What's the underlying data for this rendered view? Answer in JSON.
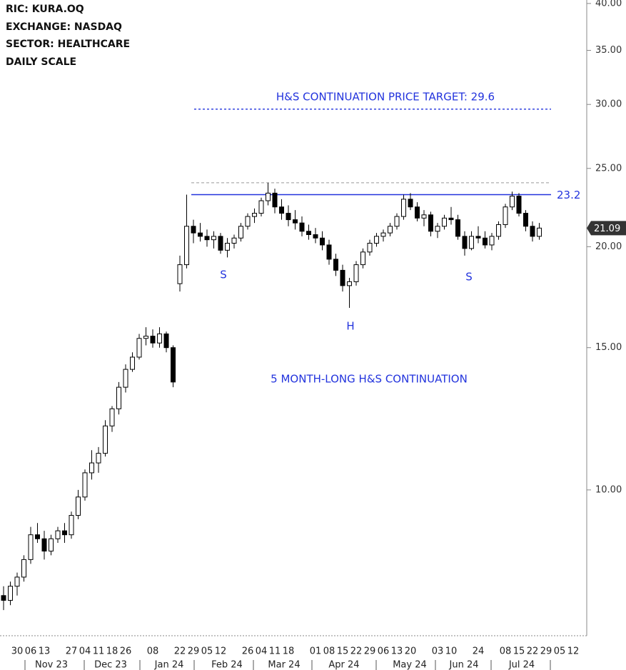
{
  "chart_data": {
    "type": "candlestick",
    "header": [
      "RIC:  KURA.OQ",
      "EXCHANGE: NASDAQ",
      "SECTOR:  HEALTHCARE",
      "DAILY SCALE"
    ],
    "log_scale": true,
    "ylim": [
      6.6,
      40.4
    ],
    "yticks": [
      {
        "value": 10,
        "label": "10.00"
      },
      {
        "value": 15,
        "label": "15.00"
      },
      {
        "value": 20,
        "label": "20.00"
      },
      {
        "value": 25,
        "label": "25.00"
      },
      {
        "value": 30,
        "label": "30.00"
      },
      {
        "value": 35,
        "label": "35.00"
      },
      {
        "value": 40,
        "label": "40.00"
      }
    ],
    "categories": [
      null,
      null,
      "30",
      null,
      "06",
      null,
      "13",
      null,
      null,
      null,
      "27",
      null,
      "04",
      null,
      "11",
      null,
      "18",
      null,
      "26",
      null,
      null,
      null,
      "08",
      null,
      null,
      null,
      "22",
      null,
      "29",
      null,
      "05",
      null,
      "12",
      null,
      null,
      null,
      "26",
      null,
      "04",
      null,
      "11",
      null,
      "18",
      null,
      null,
      null,
      "01",
      null,
      "08",
      null,
      "15",
      null,
      "22",
      null,
      "29",
      null,
      "06",
      null,
      "13",
      null,
      "20",
      null,
      null,
      null,
      "03",
      null,
      "10",
      null,
      null,
      null,
      "24",
      null,
      null,
      null,
      "08",
      null,
      "15",
      null,
      "22",
      null,
      "29",
      null,
      "05",
      null,
      "12",
      null
    ],
    "month_labels": [
      "Nov 23",
      "Dec 23",
      "Jan 24",
      "Feb 24",
      "Mar 24",
      "Apr 24",
      "May 24",
      "Jun 24",
      "Jul 24"
    ],
    "open": [
      7.4,
      7.3,
      7.6,
      7.8,
      8.2,
      8.8,
      8.7,
      8.4,
      8.7,
      8.9,
      8.8,
      9.3,
      9.8,
      10.5,
      10.8,
      11.1,
      12.0,
      12.6,
      13.4,
      14.1,
      14.6,
      15.4,
      15.5,
      15.2,
      15.6,
      15.0,
      18.0,
      19.0,
      21.2,
      20.8,
      20.6,
      20.4,
      20.6,
      19.8,
      20.2,
      20.5,
      21.2,
      21.8,
      22.0,
      22.8,
      23.3,
      22.4,
      22.0,
      21.6,
      21.4,
      20.9,
      20.7,
      20.5,
      20.1,
      19.3,
      18.7,
      17.9,
      18.1,
      19.0,
      19.7,
      20.2,
      20.6,
      20.8,
      21.2,
      21.8,
      22.9,
      22.4,
      21.7,
      21.9,
      20.9,
      21.2,
      21.7,
      21.6,
      20.6,
      19.9,
      20.6,
      20.5,
      20.1,
      20.6,
      21.3,
      22.4,
      23.1,
      22.0,
      21.2,
      20.6,
      null,
      null,
      null,
      null,
      null,
      null
    ],
    "high": [
      7.6,
      7.7,
      7.9,
      8.3,
      9.0,
      9.1,
      8.9,
      8.8,
      9.0,
      9.1,
      9.4,
      10.0,
      10.6,
      11.2,
      11.3,
      12.2,
      12.7,
      13.6,
      14.3,
      14.8,
      15.6,
      15.9,
      15.8,
      15.9,
      15.7,
      15.1,
      19.5,
      23.2,
      21.6,
      21.4,
      21.0,
      20.9,
      20.8,
      20.5,
      20.7,
      21.4,
      22.0,
      22.3,
      23.0,
      24.0,
      23.6,
      22.9,
      22.5,
      22.2,
      21.8,
      21.3,
      21.1,
      20.9,
      20.4,
      19.6,
      19.0,
      18.3,
      19.2,
      19.9,
      20.4,
      20.8,
      21.0,
      21.4,
      22.0,
      23.2,
      23.3,
      22.7,
      22.2,
      22.1,
      21.4,
      21.9,
      22.4,
      21.9,
      20.9,
      20.9,
      21.2,
      20.9,
      20.8,
      21.5,
      22.6,
      23.4,
      23.3,
      22.2,
      21.5,
      21.4,
      null,
      null,
      null,
      null,
      null,
      null
    ],
    "low": [
      7.1,
      7.2,
      7.4,
      7.7,
      8.1,
      8.6,
      8.2,
      8.3,
      8.6,
      8.6,
      8.7,
      9.2,
      9.7,
      10.3,
      10.5,
      11.0,
      11.8,
      12.4,
      13.2,
      14.0,
      14.5,
      15.1,
      15.0,
      15.0,
      14.8,
      13.4,
      17.6,
      18.8,
      20.2,
      20.3,
      20.0,
      19.9,
      19.6,
      19.4,
      19.9,
      20.3,
      21.0,
      21.4,
      21.8,
      22.5,
      22.0,
      21.6,
      21.2,
      21.0,
      20.6,
      20.4,
      20.2,
      19.8,
      19.0,
      18.4,
      17.6,
      16.8,
      17.9,
      18.8,
      19.5,
      20.0,
      20.3,
      20.6,
      21.0,
      21.6,
      22.2,
      21.5,
      21.2,
      20.6,
      20.5,
      21.0,
      21.3,
      20.4,
      19.5,
      19.8,
      20.2,
      19.9,
      19.8,
      20.4,
      21.1,
      22.2,
      21.8,
      20.9,
      20.3,
      20.4,
      null,
      null,
      null,
      null,
      null,
      null
    ],
    "close": [
      7.3,
      7.6,
      7.8,
      8.2,
      8.8,
      8.7,
      8.4,
      8.7,
      8.9,
      8.8,
      9.3,
      9.8,
      10.5,
      10.8,
      11.1,
      12.0,
      12.6,
      13.4,
      14.1,
      14.6,
      15.4,
      15.5,
      15.2,
      15.6,
      15.0,
      13.6,
      19.0,
      21.2,
      20.8,
      20.6,
      20.4,
      20.6,
      19.8,
      20.2,
      20.5,
      21.2,
      21.8,
      22.0,
      22.8,
      23.3,
      22.4,
      22.0,
      21.6,
      21.4,
      20.9,
      20.7,
      20.5,
      20.1,
      19.3,
      18.7,
      17.9,
      18.1,
      19.0,
      19.7,
      20.2,
      20.6,
      20.8,
      21.2,
      21.8,
      22.9,
      22.4,
      21.7,
      21.9,
      20.9,
      21.2,
      21.7,
      21.6,
      20.6,
      19.9,
      20.6,
      20.5,
      20.1,
      20.6,
      21.3,
      22.4,
      23.1,
      22.0,
      21.2,
      20.6,
      21.09,
      null,
      null,
      null,
      null,
      null,
      null
    ],
    "last_price": 21.09,
    "target": {
      "value": 29.6,
      "label": "H&S CONTINUATION PRICE TARGET: 29.6",
      "color": "#2233dd"
    },
    "neckline": {
      "value": 23.2,
      "color": "#2233dd"
    },
    "resistance": {
      "value": 24.0,
      "color": "#999999"
    },
    "annotations": [
      "S",
      "H",
      "S",
      "5 MONTH-LONG H&S CONTINUATION"
    ]
  }
}
